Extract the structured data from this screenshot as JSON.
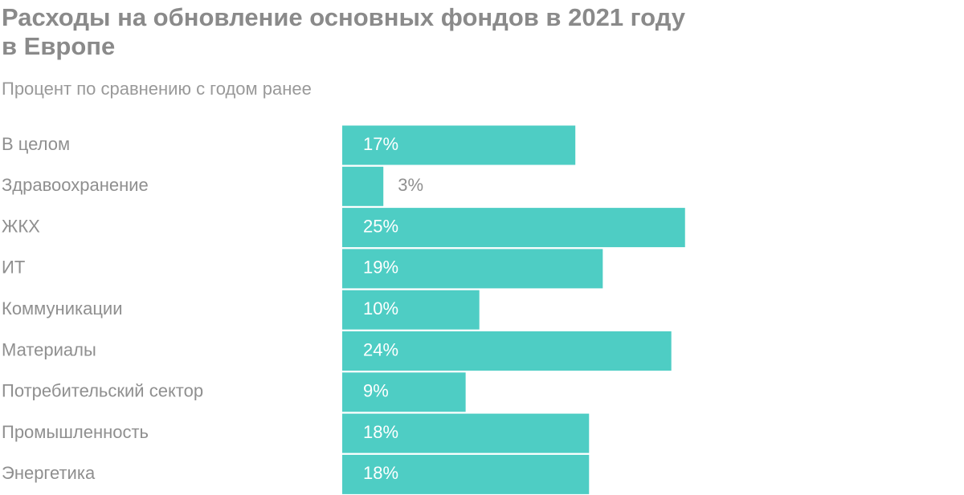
{
  "chart_data": {
    "type": "bar",
    "orientation": "horizontal",
    "title": "Расходы на обновление основных фондов в 2021 году\nв Европе",
    "subtitle": "Процент по сравнению с годом ранее",
    "categories": [
      "В целом",
      "Здравоохранение",
      "ЖКХ",
      "ИТ",
      "Коммуникации",
      "Материалы",
      "Потребительский сектор",
      "Промышленность",
      "Энергетика"
    ],
    "values": [
      17,
      3,
      25,
      19,
      10,
      24,
      9,
      18,
      18
    ],
    "value_labels": [
      "17%",
      "3%",
      "25%",
      "19%",
      "10%",
      "24%",
      "9%",
      "18%",
      "18%"
    ],
    "color": "#4ecdc4"
  }
}
